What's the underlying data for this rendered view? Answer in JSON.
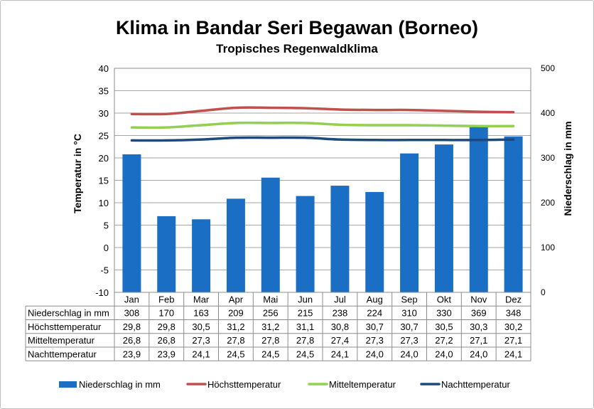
{
  "chart_data": {
    "type": "bar",
    "title": "Klima in Bandar Seri Begawan (Borneo)",
    "subtitle": "Tropisches Regenwaldklima",
    "categories": [
      "Jan",
      "Feb",
      "Mar",
      "Apr",
      "Mai",
      "Jun",
      "Jul",
      "Aug",
      "Sep",
      "Okt",
      "Nov",
      "Dez"
    ],
    "ylabel_left": "Temperatur in °C",
    "ylabel_right": "Niederschlag in mm",
    "ylim_left": [
      -10,
      40
    ],
    "ylim_right": [
      0,
      500
    ],
    "yticks_left": [
      "40",
      "35",
      "30",
      "25",
      "20",
      "15",
      "10",
      "5",
      "0",
      "-5",
      "-10"
    ],
    "yticks_right": [
      "500",
      "400",
      "300",
      "200",
      "100",
      "0"
    ],
    "grid": true,
    "legend_position": "bottom",
    "series": [
      {
        "name": "Niederschlag in mm",
        "type": "bar",
        "axis": "right",
        "color": "#1a6fc4",
        "values": [
          308,
          170,
          163,
          209,
          256,
          215,
          238,
          224,
          310,
          330,
          369,
          348
        ],
        "labels": [
          "308",
          "170",
          "163",
          "209",
          "256",
          "215",
          "238",
          "224",
          "310",
          "330",
          "369",
          "348"
        ]
      },
      {
        "name": "Höchsttemperatur",
        "type": "line",
        "axis": "left",
        "color": "#c0504d",
        "values": [
          29.8,
          29.8,
          30.5,
          31.2,
          31.2,
          31.1,
          30.8,
          30.7,
          30.7,
          30.5,
          30.3,
          30.2
        ],
        "labels": [
          "29,8",
          "29,8",
          "30,5",
          "31,2",
          "31,2",
          "31,1",
          "30,8",
          "30,7",
          "30,7",
          "30,5",
          "30,3",
          "30,2"
        ]
      },
      {
        "name": "Mitteltemperatur",
        "type": "line",
        "axis": "left",
        "color": "#92d050",
        "values": [
          26.8,
          26.8,
          27.3,
          27.8,
          27.8,
          27.8,
          27.4,
          27.3,
          27.3,
          27.2,
          27.1,
          27.1
        ],
        "labels": [
          "26,8",
          "26,8",
          "27,3",
          "27,8",
          "27,8",
          "27,8",
          "27,4",
          "27,3",
          "27,3",
          "27,2",
          "27,1",
          "27,1"
        ]
      },
      {
        "name": "Nachttemperatur",
        "type": "line",
        "axis": "left",
        "color": "#1f497d",
        "values": [
          23.9,
          23.9,
          24.1,
          24.5,
          24.5,
          24.5,
          24.1,
          24.0,
          24.0,
          24.0,
          24.0,
          24.1
        ],
        "labels": [
          "23,9",
          "23,9",
          "24,1",
          "24,5",
          "24,5",
          "24,5",
          "24,1",
          "24,0",
          "24,0",
          "24,0",
          "24,0",
          "24,1"
        ]
      }
    ]
  }
}
